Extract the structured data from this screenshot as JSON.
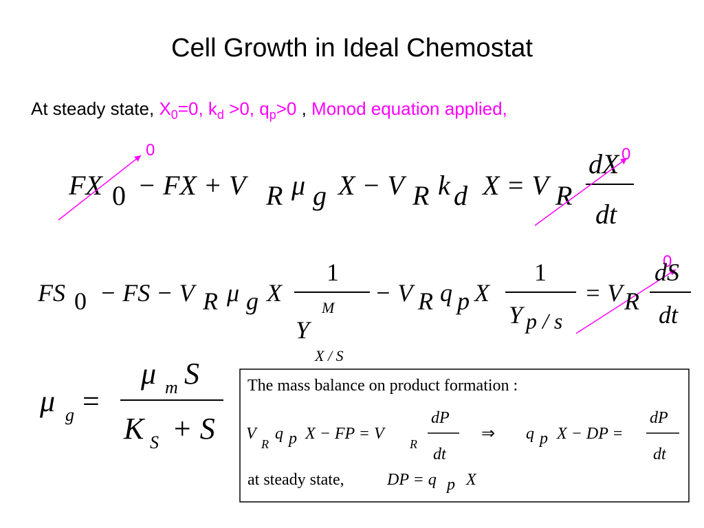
{
  "title": "Cell Growth in Ideal Chemostat",
  "intro": {
    "lead": "At steady state, ",
    "x": "X",
    "x_sub": "0",
    "part1": "=0, k",
    "kd_sub": "d",
    "part2": " >0, q",
    "qp_sub": "p",
    "part3": ">0",
    "sep": " , ",
    "monod": "Monod equation applied,"
  },
  "zeros": [
    "0",
    "0",
    "0"
  ],
  "eq1": [
    "FX",
    "0",
    "− FX + V",
    "R",
    "μ",
    "g",
    "X − V",
    "R",
    "k",
    "d",
    "X = V",
    "R",
    "dX",
    "dt"
  ],
  "eq2": [
    "FS",
    "0",
    "− FS − V",
    "R",
    "μ",
    "g",
    "X",
    "1",
    "M",
    "Y",
    "X / S",
    "− V",
    "R",
    "q",
    "p",
    "X",
    "1",
    "Y",
    "p / s",
    "= V",
    "R",
    "dS",
    "dt"
  ],
  "eq3": [
    "μ",
    "g",
    "=",
    "μ",
    "m",
    "S",
    "K",
    "S",
    "+ S"
  ],
  "box": {
    "line1": "The mass balance on product formation :",
    "line2": [
      "V",
      "R",
      "q",
      "p",
      "X − FP = V",
      "R",
      "dP",
      "dt",
      "⇒",
      "q",
      "p",
      "X − DP =",
      "dP",
      "dt"
    ],
    "line3": [
      "at steady state,",
      "DP = q",
      "p",
      "X"
    ]
  }
}
